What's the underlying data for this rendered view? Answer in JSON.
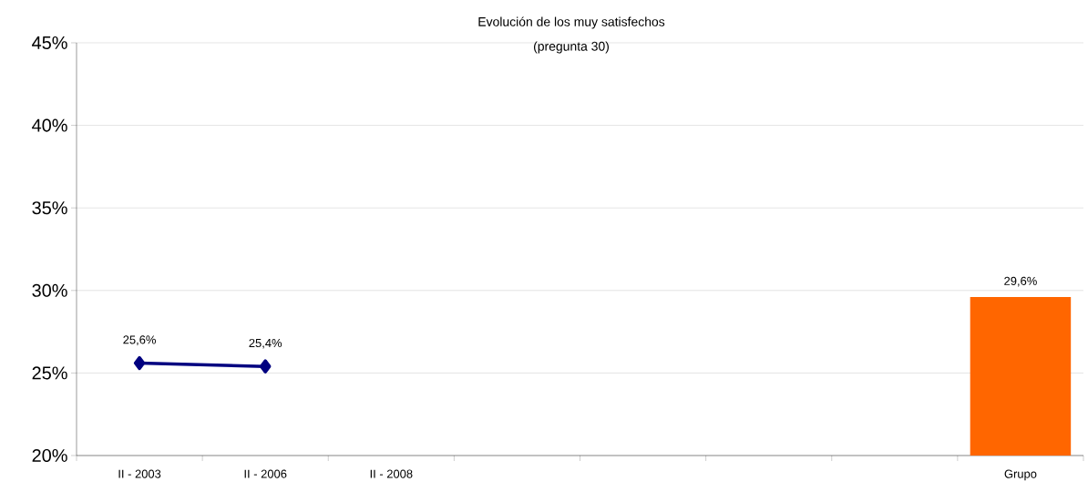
{
  "chart_data": {
    "type": "line",
    "title": "Evolución de los muy satisfechos",
    "subtitle": "(pregunta 30)",
    "categories": [
      "II - 2003",
      "II - 2006",
      "II - 2008",
      null,
      null,
      null,
      null,
      "Grupo"
    ],
    "series": [
      {
        "color": "#000080",
        "values": [
          25.6,
          25.4,
          null,
          null,
          null,
          null,
          null,
          null
        ],
        "value_labels": [
          "25,6%",
          "25,4%",
          null,
          null,
          null,
          null,
          null,
          null
        ]
      },
      {
        "type": "bar",
        "color": "#ff6600",
        "values": [
          null,
          null,
          null,
          null,
          null,
          null,
          null,
          29.6
        ],
        "value_labels": [
          null,
          null,
          null,
          null,
          null,
          null,
          null,
          "29,6%"
        ]
      }
    ],
    "ylim": [
      20,
      45
    ],
    "yticks": [
      {
        "value": 20,
        "label": "20%"
      },
      {
        "value": 25,
        "label": "25%"
      },
      {
        "value": 30,
        "label": "30%"
      },
      {
        "value": 35,
        "label": "35%"
      },
      {
        "value": 40,
        "label": "40%"
      },
      {
        "value": 45,
        "label": "45%"
      }
    ],
    "grid": "y",
    "marker": "diamond",
    "line_style": "solid"
  }
}
